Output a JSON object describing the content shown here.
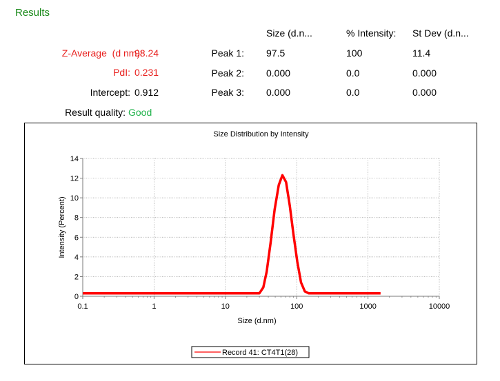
{
  "results": {
    "title": "Results",
    "headers": {
      "size": "Size (d.n...",
      "intensity": "% Intensity:",
      "stdev": "St Dev (d.n..."
    },
    "z_average": {
      "label": "Z-Average",
      "unit": "(d nm):",
      "value": "98.24"
    },
    "pdi": {
      "label": "PdI:",
      "value": "0.231"
    },
    "intercept": {
      "label": "Intercept:",
      "value": "0.912"
    },
    "quality": {
      "label": "Result  quality:",
      "value": "Good"
    },
    "peaks": [
      {
        "label": "Peak 1:",
        "size": "97.5",
        "intensity": "100",
        "stdev": "11.4"
      },
      {
        "label": "Peak 2:",
        "size": "0.000",
        "intensity": "0.0",
        "stdev": "0.000"
      },
      {
        "label": "Peak 3:",
        "size": "0.000",
        "intensity": "0.0",
        "stdev": "0.000"
      }
    ]
  },
  "colors": {
    "title": "#1a8a1a",
    "red": "#e8201e",
    "good": "#1fb24a",
    "series": "#ff0000"
  },
  "chart_data": {
    "type": "line",
    "title": "Size Distribution by Intensity",
    "xlabel": "Size (d.nm)",
    "ylabel": "Intensity (Percent)",
    "xscale": "log",
    "xlim": [
      0.1,
      10000
    ],
    "ylim": [
      0,
      14
    ],
    "xticks": [
      0.1,
      1,
      10,
      100,
      1000,
      10000
    ],
    "xtick_labels": [
      "0.1",
      "1",
      "10",
      "100",
      "1000",
      "10000"
    ],
    "yticks": [
      0,
      2,
      4,
      6,
      8,
      10,
      12,
      14
    ],
    "ytick_labels": [
      "0",
      "2",
      "4",
      "6",
      "8",
      "10",
      "12",
      "14"
    ],
    "grid": true,
    "legend_position": "bottom-center",
    "series": [
      {
        "name": "Record 41: CT4T1(28)",
        "color": "#ff0000",
        "x": [
          0.1,
          30,
          34,
          38,
          43,
          49,
          56,
          63,
          71,
          80,
          90,
          102,
          115,
          130,
          147,
          165,
          190,
          1500
        ],
        "y": [
          0.3,
          0.3,
          0.9,
          2.5,
          5.4,
          8.8,
          11.3,
          12.3,
          11.6,
          9.2,
          6.3,
          3.5,
          1.4,
          0.5,
          0.3,
          0.3,
          0.3,
          0.3
        ]
      }
    ]
  }
}
